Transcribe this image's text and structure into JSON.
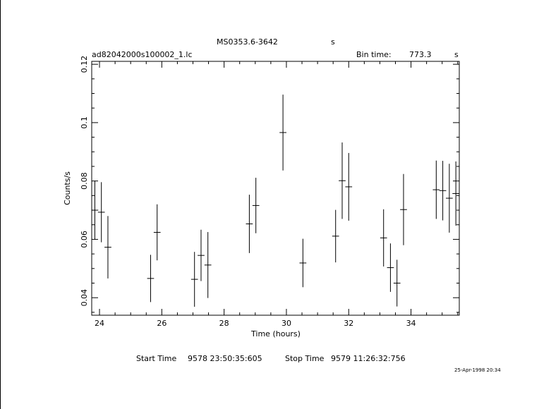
{
  "header": {
    "source_name": "MS0353.6-3642",
    "source_unit": "s",
    "file_name": "ad82042000s100002_1.lc",
    "bin_time_label": "Bin time:",
    "bin_time_value": "773.3",
    "bin_time_unit": "s"
  },
  "footer": {
    "start_label": "Start Time",
    "start_value": "9578 23:50:35:605",
    "stop_label": "Stop Time",
    "stop_value": "9579 11:26:32:756",
    "date_stamp": "25-Apr-1998 20:34"
  },
  "colors": {
    "ink": "#000000",
    "background": "#ffffff"
  },
  "chart_data": {
    "type": "scatter",
    "title": "MS0353.6-3642",
    "xlabel": "Time (hours)",
    "ylabel": "Counts/s",
    "xlim": [
      23.75,
      35.55
    ],
    "ylim": [
      0.034,
      0.121
    ],
    "x_ticks": [
      24,
      26,
      28,
      30,
      32,
      34
    ],
    "y_ticks": [
      0.04,
      0.06,
      0.08,
      0.1,
      0.12
    ],
    "x_tick_labels": [
      "24",
      "26",
      "28",
      "30",
      "32",
      "34"
    ],
    "y_tick_labels": [
      "0.04",
      "0.06",
      "0.08",
      "0.1",
      "0.12"
    ],
    "x_minor_step": 0.5,
    "y_minor_step": 0.005,
    "error_bars": true,
    "grid": false,
    "points": [
      {
        "x": 23.85,
        "xerr": 0.11,
        "y": 0.07,
        "yerr": 0.01
      },
      {
        "x": 24.06,
        "xerr": 0.11,
        "y": 0.0693,
        "yerr": 0.0103
      },
      {
        "x": 24.27,
        "xerr": 0.11,
        "y": 0.0573,
        "yerr": 0.0107
      },
      {
        "x": 25.64,
        "xerr": 0.11,
        "y": 0.0466,
        "yerr": 0.0081
      },
      {
        "x": 25.85,
        "xerr": 0.11,
        "y": 0.0624,
        "yerr": 0.0096
      },
      {
        "x": 27.05,
        "xerr": 0.11,
        "y": 0.0463,
        "yerr": 0.0094
      },
      {
        "x": 27.26,
        "xerr": 0.11,
        "y": 0.0545,
        "yerr": 0.0088
      },
      {
        "x": 27.48,
        "xerr": 0.11,
        "y": 0.0512,
        "yerr": 0.0113
      },
      {
        "x": 28.81,
        "xerr": 0.11,
        "y": 0.0653,
        "yerr": 0.01
      },
      {
        "x": 29.02,
        "xerr": 0.11,
        "y": 0.0716,
        "yerr": 0.0095
      },
      {
        "x": 29.89,
        "xerr": 0.11,
        "y": 0.0966,
        "yerr": 0.013
      },
      {
        "x": 30.53,
        "xerr": 0.11,
        "y": 0.0519,
        "yerr": 0.0083
      },
      {
        "x": 31.58,
        "xerr": 0.11,
        "y": 0.0611,
        "yerr": 0.009
      },
      {
        "x": 31.79,
        "xerr": 0.11,
        "y": 0.0801,
        "yerr": 0.0131
      },
      {
        "x": 32.0,
        "xerr": 0.11,
        "y": 0.078,
        "yerr": 0.0116
      },
      {
        "x": 33.12,
        "xerr": 0.11,
        "y": 0.0605,
        "yerr": 0.0098
      },
      {
        "x": 33.34,
        "xerr": 0.11,
        "y": 0.0503,
        "yerr": 0.0083
      },
      {
        "x": 33.55,
        "xerr": 0.11,
        "y": 0.045,
        "yerr": 0.008
      },
      {
        "x": 33.76,
        "xerr": 0.11,
        "y": 0.0702,
        "yerr": 0.0122
      },
      {
        "x": 34.81,
        "xerr": 0.11,
        "y": 0.077,
        "yerr": 0.01
      },
      {
        "x": 35.02,
        "xerr": 0.11,
        "y": 0.0767,
        "yerr": 0.0102
      },
      {
        "x": 35.23,
        "xerr": 0.11,
        "y": 0.0741,
        "yerr": 0.0118
      },
      {
        "x": 35.44,
        "xerr": 0.11,
        "y": 0.0757,
        "yerr": 0.011
      }
    ]
  }
}
